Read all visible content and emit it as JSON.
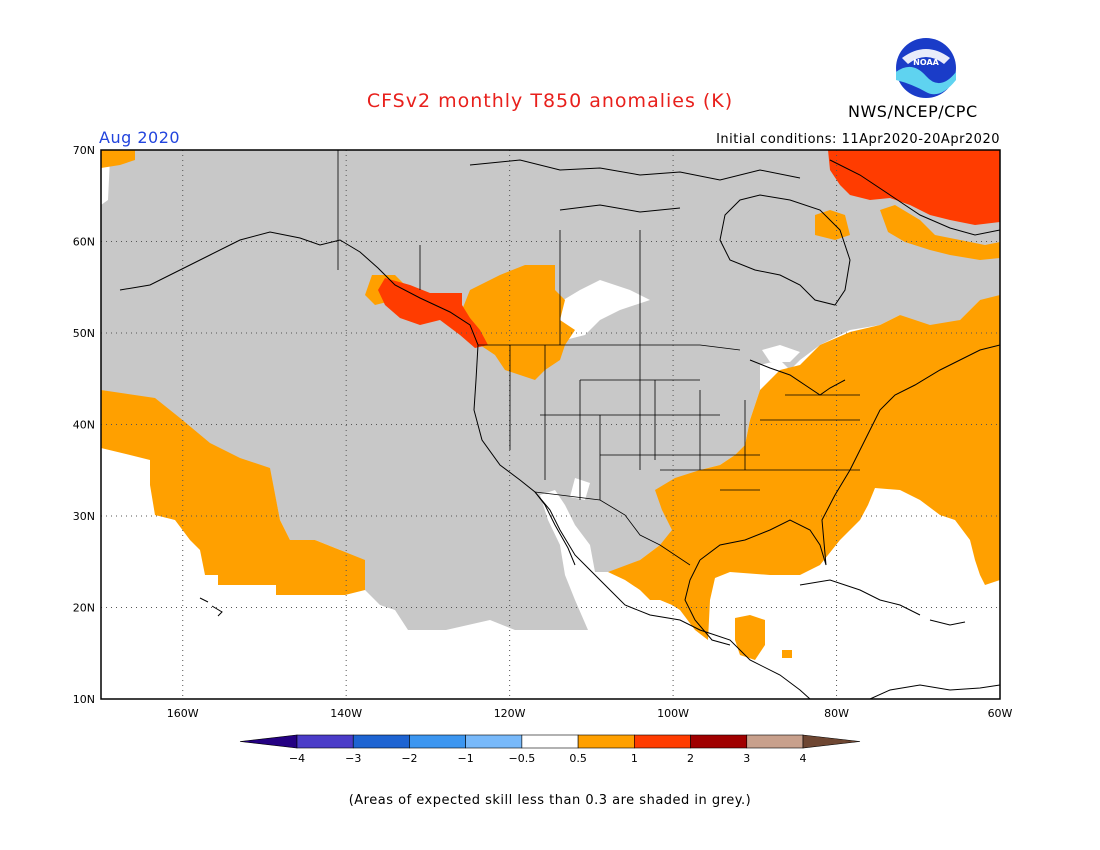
{
  "header": {
    "title": "CFSv2 monthly T850 anomalies (K)",
    "month": "Aug 2020",
    "agency": "NWS/NCEP/CPC",
    "initial_conditions": "Initial conditions: 11Apr2020-20Apr2020",
    "logo_text": "NOAA"
  },
  "map": {
    "lon_range": [
      -170,
      -60
    ],
    "lat_range": [
      10,
      70
    ],
    "lat_ticks": [
      {
        "value": 70,
        "label": "70N"
      },
      {
        "value": 60,
        "label": "60N"
      },
      {
        "value": 50,
        "label": "50N"
      },
      {
        "value": 40,
        "label": "40N"
      },
      {
        "value": 30,
        "label": "30N"
      },
      {
        "value": 20,
        "label": "20N"
      },
      {
        "value": 10,
        "label": "10N"
      }
    ],
    "lon_ticks": [
      {
        "value": -160,
        "label": "160W"
      },
      {
        "value": -140,
        "label": "140W"
      },
      {
        "value": -120,
        "label": "120W"
      },
      {
        "value": -100,
        "label": "100W"
      },
      {
        "value": -80,
        "label": "80W"
      },
      {
        "value": -60,
        "label": "60W"
      }
    ],
    "colors": {
      "grey_low_skill": "#c8c8c8",
      "neutral": "#ffffff",
      "warm_0_5_to_1": "#ffa000",
      "warm_1_to_2": "#ff3c00",
      "coast": "#000000",
      "grid": "#555555"
    }
  },
  "colorbar": {
    "segments": [
      {
        "color": "#240082"
      },
      {
        "color": "#4b3cc8"
      },
      {
        "color": "#1e64d2"
      },
      {
        "color": "#3c96f0"
      },
      {
        "color": "#78b9fa"
      },
      {
        "color": "#ffffff"
      },
      {
        "color": "#ffa000"
      },
      {
        "color": "#ff3c00"
      },
      {
        "color": "#a00000"
      },
      {
        "color": "#c8a08c"
      },
      {
        "color": "#6e4632"
      }
    ],
    "labels": [
      "−4",
      "−3",
      "−2",
      "−1",
      "−0.5",
      "0.5",
      "1",
      "2",
      "3",
      "4"
    ]
  },
  "footnote": "(Areas of expected skill less than 0.3 are shaded in grey.)"
}
